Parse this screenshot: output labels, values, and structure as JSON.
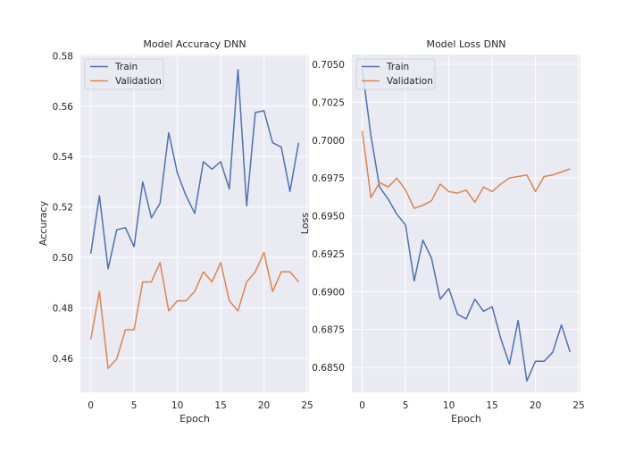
{
  "figure_background": "#ffffff",
  "axes_background": "#eaeaf2",
  "grid_color": "#ffffff",
  "colors": {
    "train": "#4c72b0",
    "validation": "#dd8452"
  },
  "chart_data": [
    {
      "type": "line",
      "title": "Model Accuracy DNN",
      "xlabel": "Epoch",
      "ylabel": "Accuracy",
      "xlim": [
        -1.2,
        25.2
      ],
      "ylim": [
        0.4465,
        0.5805
      ],
      "xticks": [
        0,
        5,
        10,
        15,
        20,
        25
      ],
      "xtick_labels": [
        "0",
        "5",
        "10",
        "15",
        "20",
        "25"
      ],
      "yticks": [
        0.46,
        0.48,
        0.5,
        0.52,
        0.54,
        0.56,
        0.58
      ],
      "ytick_labels": [
        "0.46",
        "0.48",
        "0.50",
        "0.52",
        "0.54",
        "0.56",
        "0.58"
      ],
      "grid": true,
      "legend": "top-left",
      "x": [
        0,
        1,
        2,
        3,
        4,
        5,
        6,
        7,
        8,
        9,
        10,
        11,
        12,
        13,
        14,
        15,
        16,
        17,
        18,
        19,
        20,
        21,
        22,
        23,
        24
      ],
      "series": [
        {
          "name": "Train",
          "color": "#4c72b0",
          "values": [
            0.5015,
            0.5245,
            0.4955,
            0.511,
            0.5118,
            0.5043,
            0.53,
            0.5157,
            0.5215,
            0.5495,
            0.5335,
            0.5245,
            0.5175,
            0.538,
            0.535,
            0.538,
            0.5272,
            0.5745,
            0.5205,
            0.5575,
            0.5582,
            0.5455,
            0.5438,
            0.5262,
            0.5455
          ]
        },
        {
          "name": "Validation",
          "color": "#dd8452",
          "values": [
            0.4675,
            0.4865,
            0.456,
            0.4598,
            0.4713,
            0.4713,
            0.4903,
            0.4903,
            0.498,
            0.4788,
            0.4828,
            0.4828,
            0.4865,
            0.4943,
            0.4903,
            0.498,
            0.4828,
            0.4788,
            0.4903,
            0.4943,
            0.502,
            0.4865,
            0.4943,
            0.4943,
            0.4903
          ]
        }
      ]
    },
    {
      "type": "line",
      "title": "Model Loss DNN",
      "xlabel": "Epoch",
      "ylabel": "Loss",
      "xlim": [
        -1.2,
        25.2
      ],
      "ylim": [
        0.68335,
        0.70565
      ],
      "xticks": [
        0,
        5,
        10,
        15,
        20,
        25
      ],
      "xtick_labels": [
        "0",
        "5",
        "10",
        "15",
        "20",
        "25"
      ],
      "yticks": [
        0.685,
        0.6875,
        0.69,
        0.6925,
        0.695,
        0.6975,
        0.7,
        0.7025,
        0.705
      ],
      "ytick_labels": [
        "0.6850",
        "0.6875",
        "0.6900",
        "0.6925",
        "0.6950",
        "0.6975",
        "0.7000",
        "0.7025",
        "0.7050"
      ],
      "grid": true,
      "legend": "top-left",
      "x": [
        0,
        1,
        2,
        3,
        4,
        5,
        6,
        7,
        8,
        9,
        10,
        11,
        12,
        13,
        14,
        15,
        16,
        17,
        18,
        19,
        20,
        21,
        22,
        23,
        24
      ],
      "series": [
        {
          "name": "Train",
          "color": "#4c72b0",
          "values": [
            0.7047,
            0.7003,
            0.6969,
            0.6961,
            0.6951,
            0.6944,
            0.6907,
            0.6934,
            0.6922,
            0.6895,
            0.6902,
            0.6885,
            0.6882,
            0.6895,
            0.6887,
            0.689,
            0.6869,
            0.6852,
            0.6881,
            0.6841,
            0.6854,
            0.6854,
            0.686,
            0.6878,
            0.686
          ]
        },
        {
          "name": "Validation",
          "color": "#dd8452",
          "values": [
            0.7006,
            0.6962,
            0.6972,
            0.6969,
            0.6975,
            0.6967,
            0.6955,
            0.6957,
            0.696,
            0.6971,
            0.6966,
            0.6965,
            0.6967,
            0.6959,
            0.6969,
            0.6966,
            0.6971,
            0.6975,
            0.6976,
            0.6977,
            0.6966,
            0.6976,
            0.6977,
            0.6979,
            0.6981
          ]
        }
      ]
    }
  ]
}
